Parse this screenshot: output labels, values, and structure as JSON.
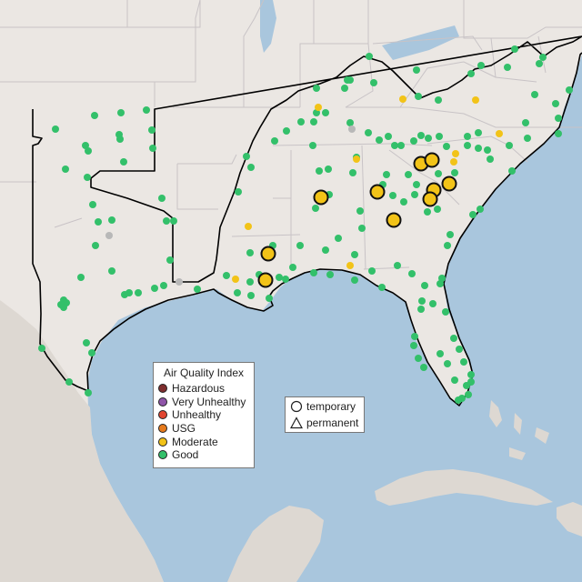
{
  "colors": {
    "water": "#a9c6dd",
    "land": "#ebe7e3",
    "land_south": "#ddd8d2",
    "border": "#c8c3c6",
    "region_outline": "#000000"
  },
  "aqi_legend": {
    "title": "Air Quality Index",
    "items": [
      {
        "label": "Hazardous",
        "color": "#7e2e2e"
      },
      {
        "label": "Very Unhealthy",
        "color": "#8f55a8"
      },
      {
        "label": "Unhealthy",
        "color": "#e14530"
      },
      {
        "label": "USG",
        "color": "#e67a1c"
      },
      {
        "label": "Moderate",
        "color": "#f2c318"
      },
      {
        "label": "Good",
        "color": "#33c06a"
      }
    ]
  },
  "shape_legend": {
    "items": [
      {
        "label": "temporary",
        "shape": "circle-icon"
      },
      {
        "label": "permanent",
        "shape": "triangle-icon"
      }
    ]
  }
}
